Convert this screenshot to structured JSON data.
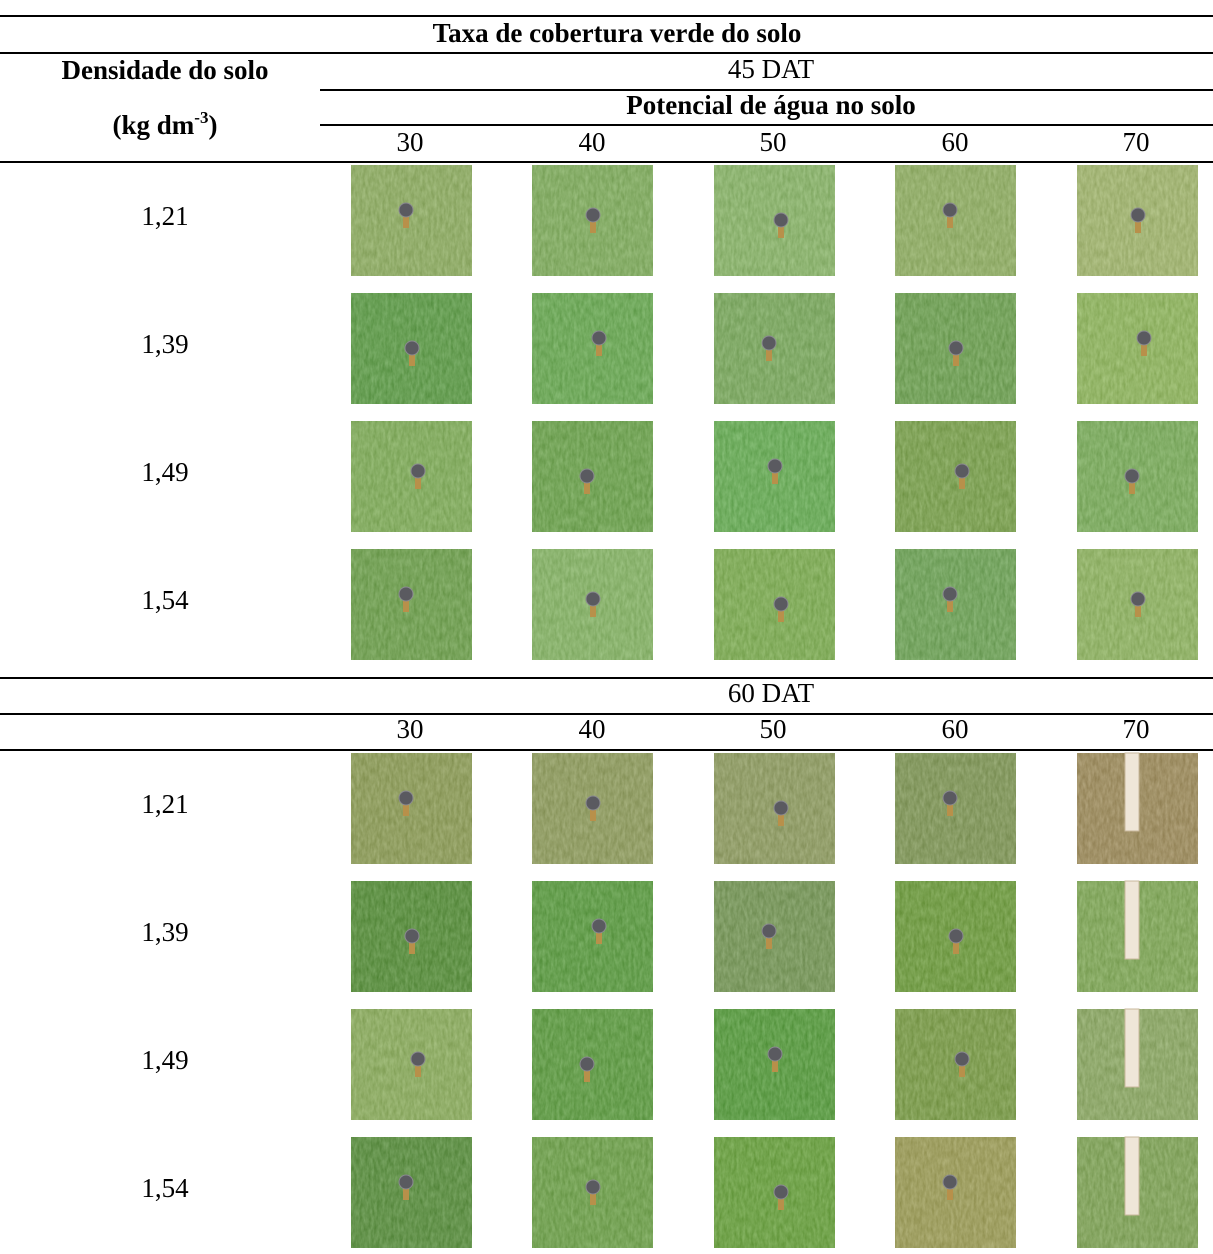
{
  "title": "Taxa de cobertura verde do solo",
  "row_header": {
    "label": "Densidade do solo",
    "unit": "(kg dm",
    "unit_sup": "-3",
    "unit_close": ")"
  },
  "sections": [
    {
      "label": "45 DAT",
      "subheader": "Potencial de água no solo",
      "columns": [
        "30",
        "40",
        "50",
        "60",
        "70"
      ],
      "rows": [
        "1,21",
        "1,39",
        "1,49",
        "1,54"
      ]
    },
    {
      "label": "60 DAT",
      "columns": [
        "30",
        "40",
        "50",
        "60",
        "70"
      ],
      "rows": [
        "1,21",
        "1,39",
        "1,49",
        "1,54"
      ]
    }
  ]
}
